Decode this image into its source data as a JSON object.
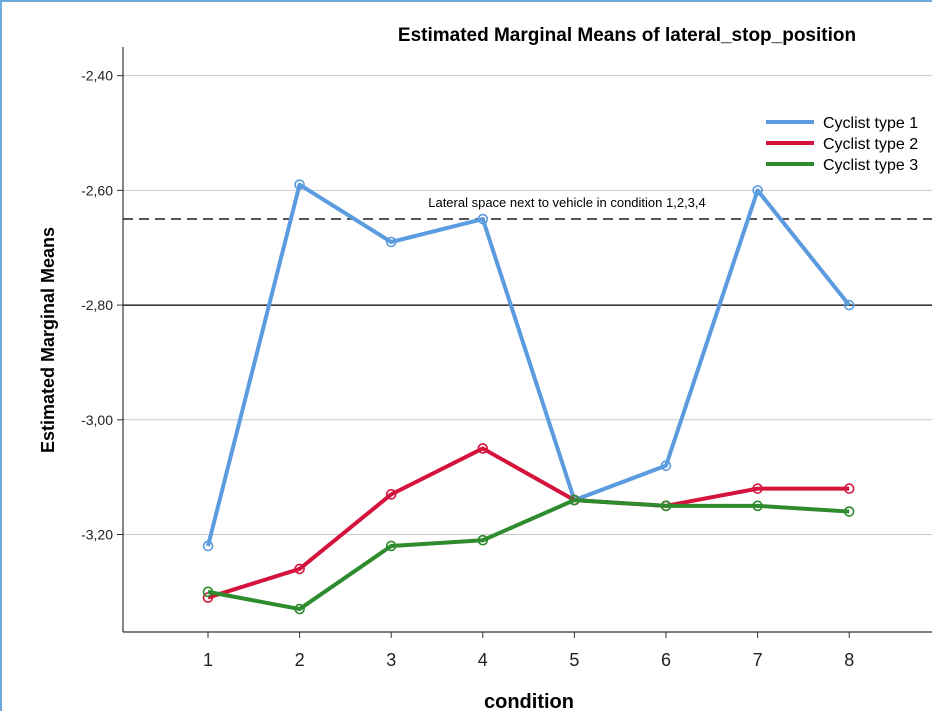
{
  "chart_data": {
    "type": "line",
    "title": "Estimated Marginal Means of lateral_stop_position",
    "xlabel": "condition",
    "ylabel": "Estimated Marginal Means",
    "categories": [
      "1",
      "2",
      "3",
      "4",
      "5",
      "6",
      "7",
      "8"
    ],
    "ylim": [
      -3.37,
      -2.35
    ],
    "yticks": [
      -3.2,
      -3.0,
      -2.8,
      -2.6,
      -2.4
    ],
    "ytick_labels": [
      "-3,20",
      "-3,00",
      "-2,80",
      "-2,60",
      "-2,40"
    ],
    "grid": "horizontal",
    "legend_position": "top-right",
    "series": [
      {
        "name": "Cyclist type 1",
        "color": "#5b9bdf",
        "values": [
          -3.22,
          -2.59,
          -2.69,
          -2.65,
          -3.14,
          -3.08,
          -2.6,
          -2.8
        ]
      },
      {
        "name": "Cyclist type 2",
        "color": "#d4143c",
        "values": [
          -3.31,
          -3.26,
          -3.13,
          -3.05,
          -3.14,
          -3.15,
          -3.12,
          -3.12
        ]
      },
      {
        "name": "Cyclist type 3",
        "color": "#2e8b2e",
        "values": [
          -3.3,
          -3.33,
          -3.22,
          -3.21,
          -3.14,
          -3.15,
          -3.15,
          -3.16
        ]
      }
    ],
    "reference_lines": [
      {
        "value": -2.65,
        "style": "dashed",
        "color": "#555555",
        "label": "Lateral space next to vehicle in condition 1,2,3,4"
      },
      {
        "value": -2.8,
        "style": "solid",
        "color": "#000000"
      }
    ]
  }
}
